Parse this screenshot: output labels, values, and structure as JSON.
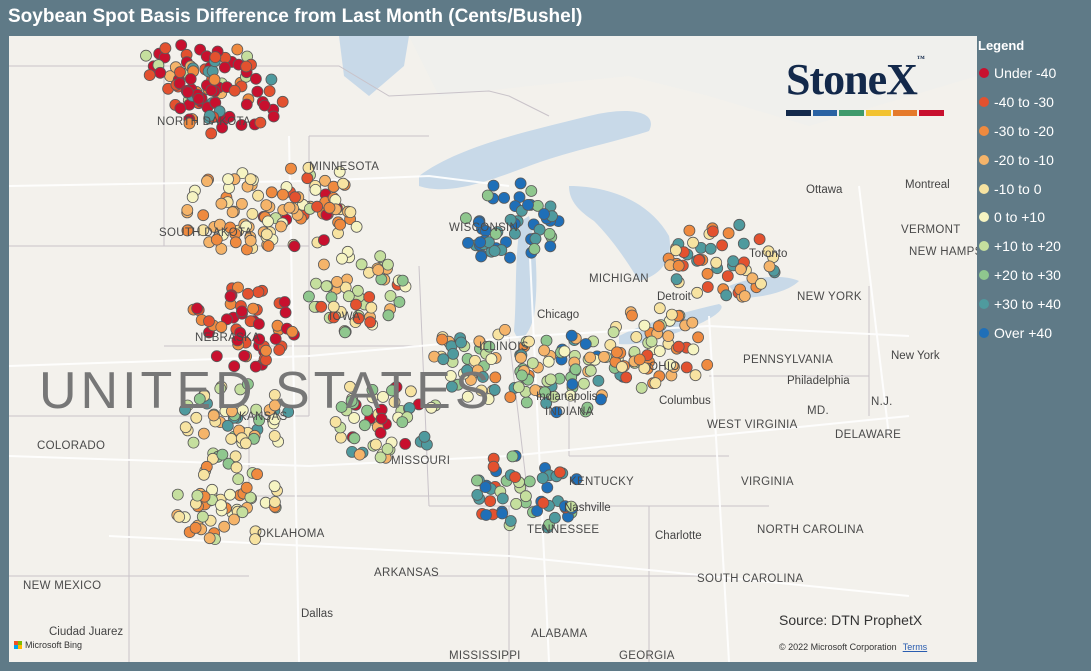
{
  "title": "Soybean Spot Basis Difference from Last Month (Cents/Bushel)",
  "legend": {
    "title": "Legend",
    "items": [
      {
        "label": "Under -40",
        "color": "#c8102e"
      },
      {
        "label": "-40 to -30",
        "color": "#e3512f"
      },
      {
        "label": "-30 to -20",
        "color": "#ef8a3f"
      },
      {
        "label": "-20 to -10",
        "color": "#f5b46a"
      },
      {
        "label": "-10 to 0",
        "color": "#f7e3a1"
      },
      {
        "label": "0 to +10",
        "color": "#f6f4c2"
      },
      {
        "label": "+10 to +20",
        "color": "#c5df9e"
      },
      {
        "label": "+20 to +30",
        "color": "#8fc78e"
      },
      {
        "label": "+30 to +40",
        "color": "#4f9a9e"
      },
      {
        "label": "Over +40",
        "color": "#1f6fb8"
      }
    ]
  },
  "logo": {
    "text": "StoneX",
    "tm": "™",
    "bar_colors": [
      "#13294b",
      "#2a62a3",
      "#3f9a6c",
      "#f2c230",
      "#e57a2b",
      "#c8102e"
    ]
  },
  "source": "Source: DTN ProphetX",
  "copyright": "© 2022 Microsoft Corporation",
  "terms": "Terms",
  "bing": "Microsoft Bing",
  "map_labels": {
    "country": "UNITED STATES",
    "states": [
      "NORTH DAKOTA",
      "MINNESOTA",
      "SOUTH DAKOTA",
      "WISCONSIN",
      "MICHIGAN",
      "NEBRASKA",
      "IOWA",
      "ILLINOIS",
      "INDIANA",
      "OHIO",
      "COLORADO",
      "KANSAS",
      "MISSOURI",
      "KENTUCKY",
      "TENNESSEE",
      "OKLAHOMA",
      "ARKANSAS",
      "NEW MEXICO",
      "ALABAMA",
      "MISSISSIPPI",
      "GEORGIA",
      "WEST VIRGINIA",
      "VIRGINIA",
      "NORTH CAROLINA",
      "SOUTH CAROLINA",
      "PENNSYLVANIA",
      "NEW YORK",
      "VERMONT",
      "NEW HAMPSHIRE",
      "MD.",
      "DELAWARE",
      "N.J."
    ],
    "cities": [
      "Ottawa",
      "Montreal",
      "Toronto",
      "Chicago",
      "Detroit",
      "Columbus",
      "Indianapolis",
      "Nashville",
      "Charlotte",
      "Philadelphia",
      "New York",
      "Dallas",
      "Ciudad Juarez"
    ]
  },
  "chart_data": {
    "type": "scatter",
    "title": "Soybean Spot Basis Difference from Last Month (Cents/Bushel)",
    "description_units": "cents/bushel change vs last month",
    "categories": [
      "Under -40",
      "-40 to -30",
      "-30 to -20",
      "-20 to -10",
      "-10 to 0",
      "0 to +10",
      "+10 to +20",
      "+20 to +30",
      "+30 to +40",
      "Over +40"
    ],
    "regions": [
      {
        "area": "North Dakota north",
        "lon": -98.5,
        "lat": 48.6,
        "classes": [
          0,
          0,
          1,
          2,
          3,
          6
        ]
      },
      {
        "area": "North Dakota east",
        "lon": -97.4,
        "lat": 47.7,
        "classes": [
          0,
          0,
          0,
          1,
          2,
          8
        ]
      },
      {
        "area": "Minnesota south",
        "lon": -94.8,
        "lat": 44.6,
        "classes": [
          0,
          1,
          2,
          3,
          4,
          5,
          6
        ]
      },
      {
        "area": "South Dakota east",
        "lon": -97.2,
        "lat": 44.4,
        "classes": [
          2,
          3,
          3,
          4,
          5
        ]
      },
      {
        "area": "Iowa",
        "lon": -93.4,
        "lat": 42.2,
        "classes": [
          5,
          6,
          6,
          7,
          4,
          3,
          1
        ]
      },
      {
        "area": "Nebraska east",
        "lon": -97.0,
        "lat": 41.2,
        "classes": [
          0,
          0,
          0,
          1,
          1,
          2
        ]
      },
      {
        "area": "Kansas",
        "lon": -97.2,
        "lat": 38.5,
        "classes": [
          3,
          4,
          5,
          6,
          7,
          8,
          4
        ]
      },
      {
        "area": "Wisconsin east",
        "lon": -88.4,
        "lat": 44.2,
        "classes": [
          9,
          9,
          8,
          7,
          9
        ]
      },
      {
        "area": "Illinois",
        "lon": -89.2,
        "lat": 40.2,
        "classes": [
          3,
          4,
          5,
          6,
          7,
          8,
          2
        ]
      },
      {
        "area": "Indiana",
        "lon": -86.4,
        "lat": 39.8,
        "classes": [
          6,
          7,
          8,
          9,
          5,
          3
        ]
      },
      {
        "area": "Ohio",
        "lon": -83.6,
        "lat": 40.6,
        "classes": [
          2,
          3,
          4,
          5,
          6,
          1
        ]
      },
      {
        "area": "Michigan/Ontario",
        "lon": -81.5,
        "lat": 43.0,
        "classes": [
          1,
          2,
          3,
          4,
          8
        ]
      },
      {
        "area": "Missouri",
        "lon": -92.4,
        "lat": 38.6,
        "classes": [
          3,
          4,
          5,
          6,
          7,
          8,
          0
        ]
      },
      {
        "area": "Kentucky/Tennessee",
        "lon": -87.8,
        "lat": 36.6,
        "classes": [
          6,
          7,
          8,
          9,
          1
        ]
      },
      {
        "area": "Oklahoma",
        "lon": -97.5,
        "lat": 36.2,
        "classes": [
          3,
          4,
          5,
          6,
          2
        ]
      }
    ]
  }
}
